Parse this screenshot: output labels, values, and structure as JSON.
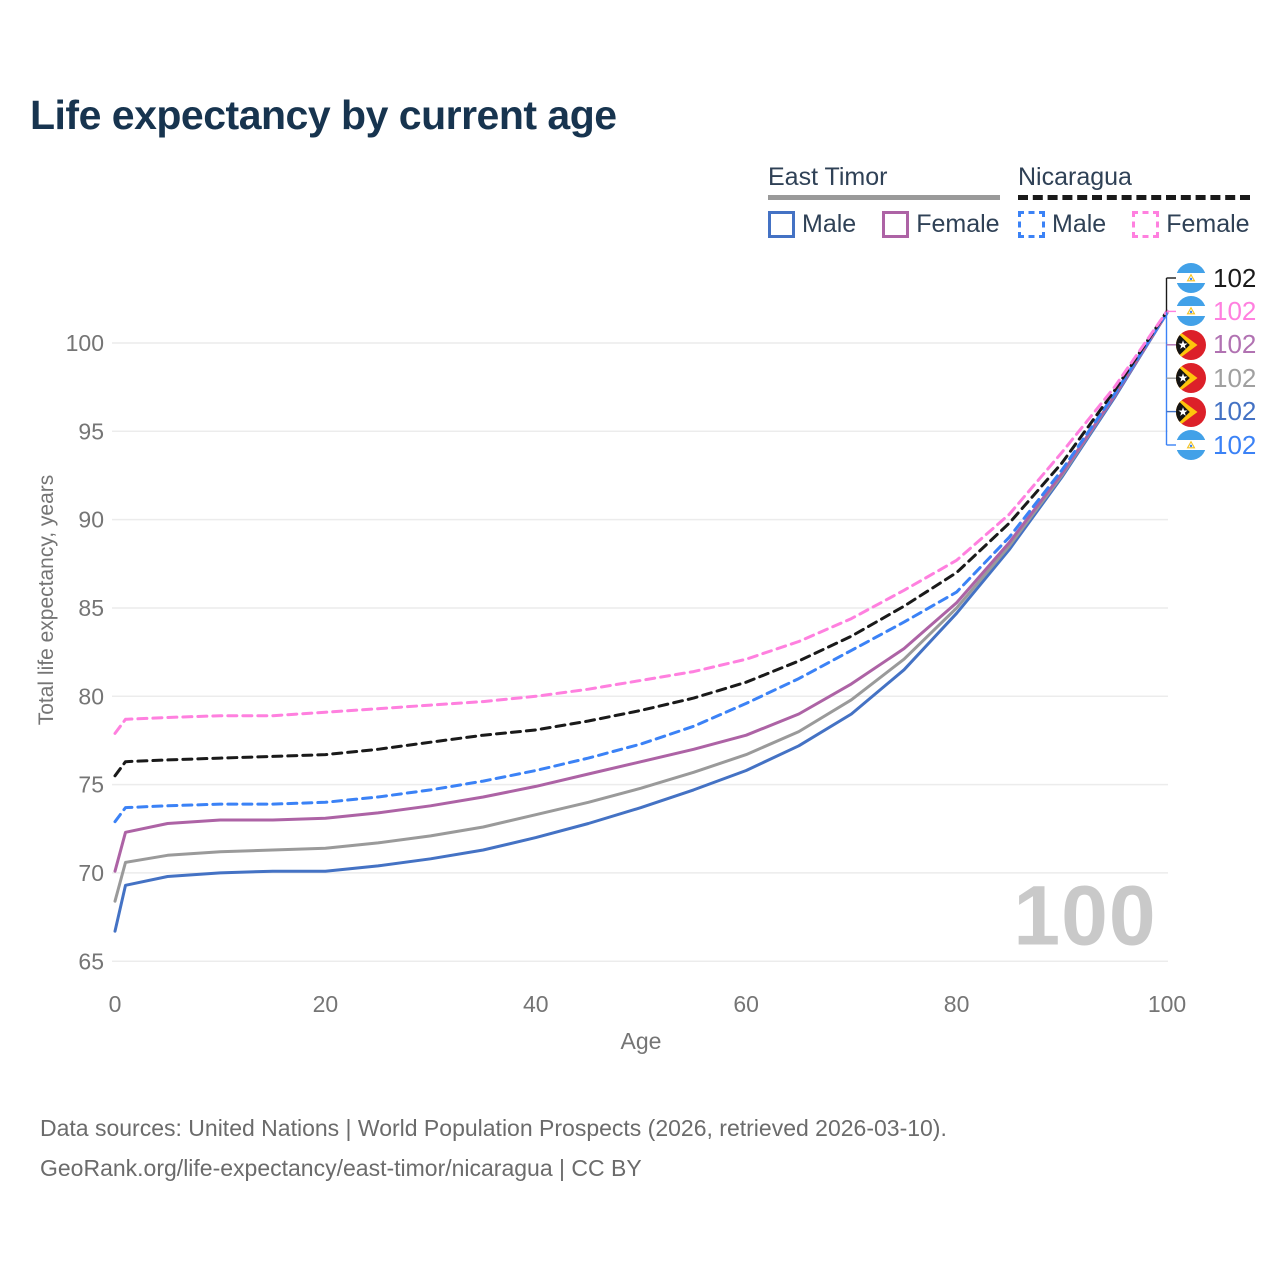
{
  "header": {
    "title": "Life expectancy by current age"
  },
  "legend": {
    "groups": [
      {
        "label": "East Timor",
        "line_style": "solid",
        "underline_color": "#9a9a9a",
        "items": [
          {
            "label": "Male",
            "color": "#4472c4"
          },
          {
            "label": "Female",
            "color": "#ad63a5"
          }
        ]
      },
      {
        "label": "Nicaragua",
        "line_style": "dashed",
        "underline_color": "#1a1a1a",
        "items": [
          {
            "label": "Male",
            "color": "#3b82f6"
          },
          {
            "label": "Female",
            "color": "#ff80df"
          }
        ]
      }
    ]
  },
  "chart_data": {
    "type": "line",
    "title": "Life expectancy by current age",
    "xlabel": "Age",
    "ylabel": "Total life expectancy, years",
    "xlim": [
      0,
      100
    ],
    "ylim": [
      65,
      102
    ],
    "xticks": [
      0,
      20,
      40,
      60,
      80,
      100
    ],
    "yticks": [
      65,
      70,
      75,
      80,
      85,
      90,
      95,
      100
    ],
    "grid": "horizontal",
    "legend_position": "top-right",
    "x": [
      0,
      1,
      5,
      10,
      15,
      20,
      25,
      30,
      35,
      40,
      45,
      50,
      55,
      60,
      65,
      70,
      75,
      80,
      85,
      90,
      95,
      100
    ],
    "series": [
      {
        "name": "East Timor Male",
        "country": "east-timor",
        "sex": "male",
        "style": "solid",
        "color": "#4472c4",
        "values": [
          66.7,
          69.3,
          69.8,
          70.0,
          70.1,
          70.1,
          70.4,
          70.8,
          71.3,
          72.0,
          72.8,
          73.7,
          74.7,
          75.8,
          77.2,
          79.0,
          81.5,
          84.7,
          88.3,
          92.4,
          96.9,
          101.7
        ]
      },
      {
        "name": "East Timor Total",
        "country": "east-timor",
        "sex": "both",
        "style": "solid",
        "color": "#9a9a9a",
        "values": [
          68.4,
          70.6,
          71.0,
          71.2,
          71.3,
          71.4,
          71.7,
          72.1,
          72.6,
          73.3,
          74.0,
          74.8,
          75.7,
          76.7,
          78.0,
          79.8,
          82.1,
          85.0,
          88.5,
          92.5,
          97.0,
          101.7
        ]
      },
      {
        "name": "East Timor Female",
        "country": "east-timor",
        "sex": "female",
        "style": "solid",
        "color": "#ad63a5",
        "values": [
          70.1,
          72.3,
          72.8,
          73.0,
          73.0,
          73.1,
          73.4,
          73.8,
          74.3,
          74.9,
          75.6,
          76.3,
          77.0,
          77.8,
          79.0,
          80.7,
          82.7,
          85.3,
          88.7,
          92.6,
          97.0,
          101.7
        ]
      },
      {
        "name": "Nicaragua Male",
        "country": "nicaragua",
        "sex": "male",
        "style": "dashed",
        "color": "#3b82f6",
        "values": [
          72.9,
          73.7,
          73.8,
          73.9,
          73.9,
          74.0,
          74.3,
          74.7,
          75.2,
          75.8,
          76.5,
          77.3,
          78.3,
          79.6,
          81.0,
          82.6,
          84.2,
          85.9,
          89.0,
          92.8,
          97.1,
          101.7
        ]
      },
      {
        "name": "Nicaragua Total",
        "country": "nicaragua",
        "sex": "both",
        "style": "dashed",
        "color": "#1a1a1a",
        "values": [
          75.5,
          76.3,
          76.4,
          76.5,
          76.6,
          76.7,
          77.0,
          77.4,
          77.8,
          78.1,
          78.6,
          79.2,
          79.9,
          80.8,
          82.0,
          83.4,
          85.1,
          87.0,
          89.8,
          93.2,
          97.3,
          101.8
        ]
      },
      {
        "name": "Nicaragua Female",
        "country": "nicaragua",
        "sex": "female",
        "style": "dashed",
        "color": "#ff80df",
        "values": [
          77.9,
          78.7,
          78.8,
          78.9,
          78.9,
          79.1,
          79.3,
          79.5,
          79.7,
          80.0,
          80.4,
          80.9,
          81.4,
          82.1,
          83.1,
          84.4,
          86.0,
          87.7,
          90.3,
          93.8,
          97.5,
          101.8
        ]
      }
    ]
  },
  "endpoint_labels": [
    {
      "country": "nicaragua",
      "flag": "nicaragua-flag",
      "color": "#1a1a1a",
      "value": "102"
    },
    {
      "country": "nicaragua",
      "flag": "nicaragua-flag",
      "color": "#ff80df",
      "value": "102"
    },
    {
      "country": "east-timor",
      "flag": "east-timor-flag",
      "color": "#b172b2",
      "value": "102"
    },
    {
      "country": "east-timor",
      "flag": "east-timor-flag",
      "color": "#a0a0a0",
      "value": "102"
    },
    {
      "country": "east-timor",
      "flag": "east-timor-flag",
      "color": "#4472c4",
      "value": "102"
    },
    {
      "country": "nicaragua",
      "flag": "nicaragua-flag",
      "color": "#3b82f6",
      "value": "102"
    }
  ],
  "watermark": {
    "text": "100"
  },
  "footer": {
    "line1": "Data sources: United Nations | World Population Prospects (2026, retrieved 2026-03-10).",
    "line2": "GeoRank.org/life-expectancy/east-timor/nicaragua | CC BY"
  }
}
